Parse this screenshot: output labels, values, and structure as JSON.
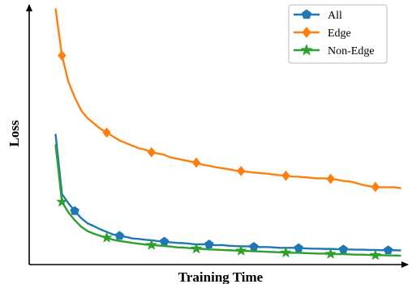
{
  "chart_data": {
    "type": "line",
    "title": "",
    "xlabel": "Training Time",
    "ylabel": "Loss",
    "xlim": [
      0,
      1
    ],
    "ylim": [
      0,
      1
    ],
    "grid": false,
    "legend_position": "top-right",
    "series": [
      {
        "name": "All",
        "color": "#1f77b4",
        "marker": "pentagon",
        "marker_every": 7,
        "x": [
          0.07,
          0.087,
          0.104,
          0.121,
          0.138,
          0.155,
          0.172,
          0.189,
          0.206,
          0.223,
          0.24,
          0.257,
          0.274,
          0.291,
          0.308,
          0.325,
          0.342,
          0.359,
          0.376,
          0.393,
          0.41,
          0.427,
          0.444,
          0.461,
          0.478,
          0.495,
          0.512,
          0.529,
          0.546,
          0.563,
          0.58,
          0.597,
          0.614,
          0.631,
          0.648,
          0.665,
          0.682,
          0.699,
          0.716,
          0.733,
          0.75,
          0.767,
          0.784,
          0.801,
          0.818,
          0.835,
          0.852,
          0.869,
          0.886,
          0.903,
          0.92,
          0.937,
          0.954,
          0.971,
          0.988
        ],
        "values": [
          0.5,
          0.27,
          0.235,
          0.205,
          0.178,
          0.158,
          0.147,
          0.135,
          0.125,
          0.115,
          0.11,
          0.106,
          0.1,
          0.098,
          0.095,
          0.093,
          0.09,
          0.088,
          0.085,
          0.083,
          0.082,
          0.08,
          0.077,
          0.078,
          0.077,
          0.074,
          0.075,
          0.072,
          0.071,
          0.07,
          0.07,
          0.068,
          0.067,
          0.067,
          0.066,
          0.064,
          0.064,
          0.064,
          0.063,
          0.062,
          0.061,
          0.061,
          0.06,
          0.06,
          0.059,
          0.058,
          0.058,
          0.057,
          0.057,
          0.056,
          0.056,
          0.055,
          0.055,
          0.055,
          0.054
        ]
      },
      {
        "name": "Edge",
        "color": "#ff7f0e",
        "marker": "diamond",
        "marker_every": 7,
        "x": [
          0.07,
          0.087,
          0.104,
          0.121,
          0.138,
          0.155,
          0.172,
          0.189,
          0.206,
          0.223,
          0.24,
          0.257,
          0.274,
          0.291,
          0.308,
          0.325,
          0.342,
          0.359,
          0.376,
          0.393,
          0.41,
          0.427,
          0.444,
          0.461,
          0.478,
          0.495,
          0.512,
          0.529,
          0.546,
          0.563,
          0.58,
          0.597,
          0.614,
          0.631,
          0.648,
          0.665,
          0.682,
          0.699,
          0.716,
          0.733,
          0.75,
          0.767,
          0.784,
          0.801,
          0.818,
          0.835,
          0.852,
          0.869,
          0.886,
          0.903,
          0.92,
          0.937,
          0.954,
          0.971,
          0.988
        ],
        "values": [
          0.98,
          0.8,
          0.7,
          0.64,
          0.59,
          0.56,
          0.54,
          0.52,
          0.505,
          0.49,
          0.475,
          0.465,
          0.455,
          0.445,
          0.44,
          0.43,
          0.425,
          0.42,
          0.41,
          0.405,
          0.4,
          0.395,
          0.39,
          0.382,
          0.378,
          0.373,
          0.369,
          0.365,
          0.36,
          0.358,
          0.355,
          0.352,
          0.35,
          0.348,
          0.345,
          0.342,
          0.34,
          0.337,
          0.336,
          0.334,
          0.332,
          0.33,
          0.33,
          0.328,
          0.325,
          0.32,
          0.318,
          0.312,
          0.305,
          0.3,
          0.297,
          0.296,
          0.296,
          0.296,
          0.292
        ]
      },
      {
        "name": "Non-Edge",
        "color": "#2ca02c",
        "marker": "star",
        "marker_every": 7,
        "x": [
          0.07,
          0.087,
          0.104,
          0.121,
          0.138,
          0.155,
          0.172,
          0.189,
          0.206,
          0.223,
          0.24,
          0.257,
          0.274,
          0.291,
          0.308,
          0.325,
          0.342,
          0.359,
          0.376,
          0.393,
          0.41,
          0.427,
          0.444,
          0.461,
          0.478,
          0.495,
          0.512,
          0.529,
          0.546,
          0.563,
          0.58,
          0.597,
          0.614,
          0.631,
          0.648,
          0.665,
          0.682,
          0.699,
          0.716,
          0.733,
          0.75,
          0.767,
          0.784,
          0.801,
          0.818,
          0.835,
          0.852,
          0.869,
          0.886,
          0.903,
          0.92,
          0.937,
          0.954,
          0.971,
          0.988
        ],
        "values": [
          0.46,
          0.24,
          0.2,
          0.17,
          0.145,
          0.128,
          0.118,
          0.11,
          0.103,
          0.095,
          0.09,
          0.087,
          0.083,
          0.08,
          0.077,
          0.075,
          0.073,
          0.071,
          0.069,
          0.066,
          0.065,
          0.063,
          0.061,
          0.06,
          0.058,
          0.057,
          0.056,
          0.055,
          0.054,
          0.053,
          0.052,
          0.051,
          0.05,
          0.049,
          0.048,
          0.047,
          0.046,
          0.045,
          0.045,
          0.044,
          0.043,
          0.042,
          0.042,
          0.041,
          0.04,
          0.04,
          0.039,
          0.038,
          0.038,
          0.037,
          0.036,
          0.036,
          0.035,
          0.035,
          0.034
        ]
      }
    ]
  }
}
